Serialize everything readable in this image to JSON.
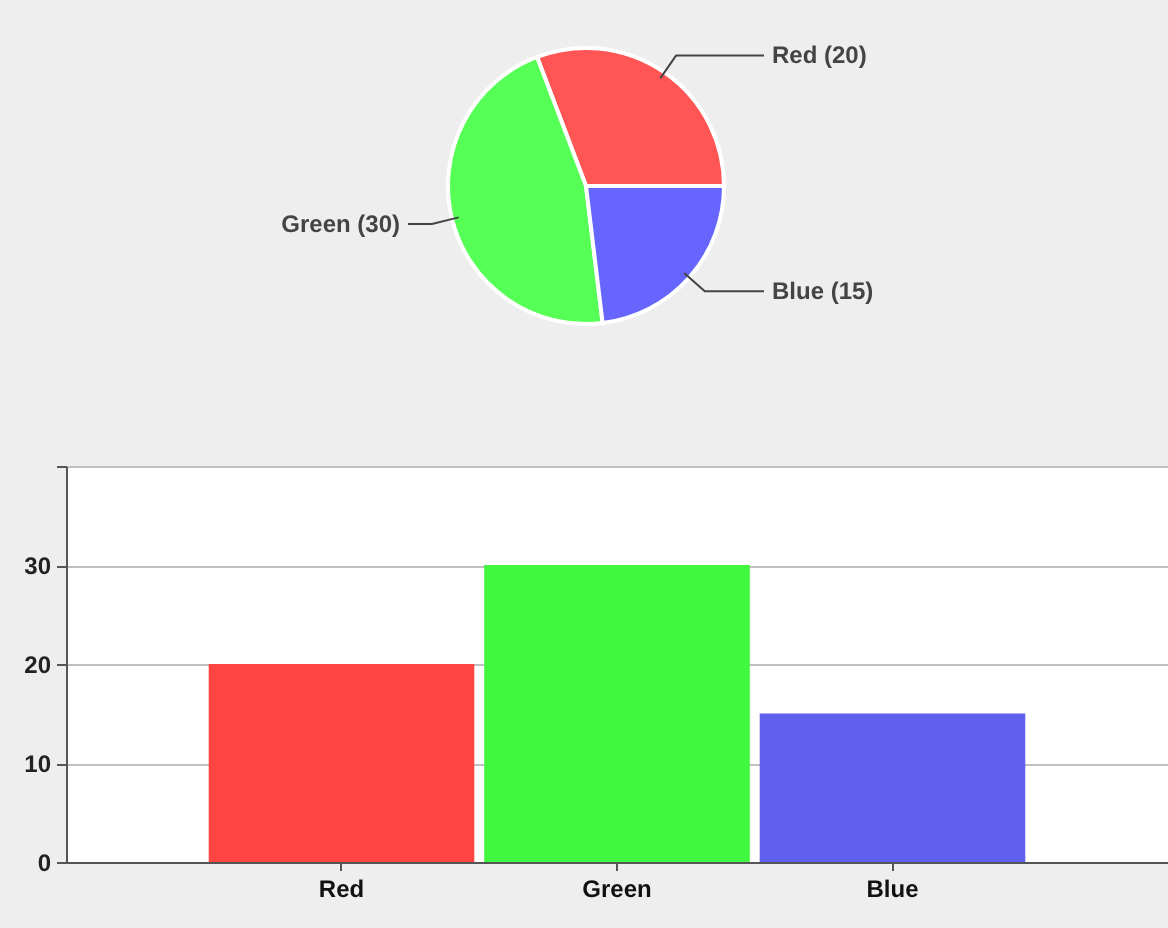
{
  "chart_data": [
    {
      "type": "pie",
      "categories": [
        "Red (20)",
        "Green (30)",
        "Blue (15)"
      ],
      "values": [
        20,
        30,
        15
      ],
      "colors": [
        "#ff5555",
        "#55ff55",
        "#6666ff"
      ]
    },
    {
      "type": "bar",
      "categories": [
        "Red",
        "Green",
        "Blue"
      ],
      "values": [
        20,
        30,
        15
      ],
      "colors": [
        "#ff4444",
        "#40f840",
        "#6060f0"
      ],
      "ylim": [
        0,
        40
      ],
      "yticks": [
        0,
        10,
        20,
        30,
        {
          "value": 40,
          "label": null
        }
      ],
      "grid": "y"
    }
  ]
}
